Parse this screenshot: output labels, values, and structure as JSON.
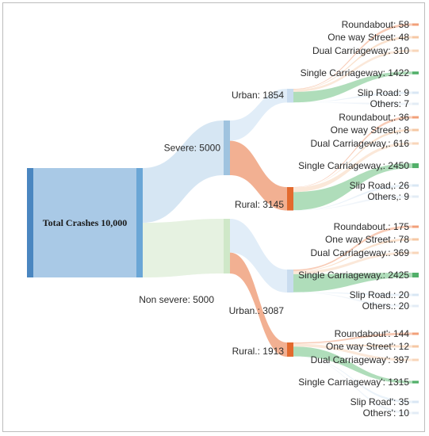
{
  "diagram": {
    "root": {
      "label": "Total Crashes 10,000",
      "value": 10000
    },
    "severity": [
      {
        "key": "severe",
        "label": "Severe: 5000",
        "value": 5000
      },
      {
        "key": "nonsevere",
        "label": "Non severe: 5000",
        "value": 5000
      }
    ],
    "area": [
      {
        "key": "sev_urban",
        "parent": "severe",
        "label": "Urban: 1854",
        "value": 1854
      },
      {
        "key": "sev_rural",
        "parent": "severe",
        "label": "Rural: 3145",
        "value": 3145
      },
      {
        "key": "non_urban",
        "parent": "nonsevere",
        "label": "Urban.: 3087",
        "value": 3087
      },
      {
        "key": "non_rural",
        "parent": "nonsevere",
        "label": "Rural.: 1913",
        "value": 1913
      }
    ],
    "roads": [
      {
        "parent": "sev_urban",
        "label": "Roundabout: 58",
        "value": 58
      },
      {
        "parent": "sev_urban",
        "label": "One way Street: 48",
        "value": 48
      },
      {
        "parent": "sev_urban",
        "label": "Dual Carriageway: 310",
        "value": 310
      },
      {
        "parent": "sev_urban",
        "label": "Single Carriageway: 1422",
        "value": 1422
      },
      {
        "parent": "sev_urban",
        "label": "Slip Road: 9",
        "value": 9
      },
      {
        "parent": "sev_urban",
        "label": "Others: 7",
        "value": 7
      },
      {
        "parent": "sev_rural",
        "label": "Roundabout,: 36",
        "value": 36
      },
      {
        "parent": "sev_rural",
        "label": "One way Street,: 8",
        "value": 8
      },
      {
        "parent": "sev_rural",
        "label": "Dual Carriageway,: 616",
        "value": 616
      },
      {
        "parent": "sev_rural",
        "label": "Single Carriageway,: 2450",
        "value": 2450
      },
      {
        "parent": "sev_rural",
        "label": "Slip Road,: 26",
        "value": 26
      },
      {
        "parent": "sev_rural",
        "label": "Others,: 9",
        "value": 9
      },
      {
        "parent": "non_urban",
        "label": "Roundabout.: 175",
        "value": 175
      },
      {
        "parent": "non_urban",
        "label": "One way Street.: 78",
        "value": 78
      },
      {
        "parent": "non_urban",
        "label": "Dual Carriageway.: 369",
        "value": 369
      },
      {
        "parent": "non_urban",
        "label": "Single Carriageway.: 2425",
        "value": 2425
      },
      {
        "parent": "non_urban",
        "label": "Slip Road.: 20",
        "value": 20
      },
      {
        "parent": "non_urban",
        "label": "Others.: 20",
        "value": 20
      },
      {
        "parent": "non_rural",
        "label": "Roundabout': 144",
        "value": 144
      },
      {
        "parent": "non_rural",
        "label": "One way Street': 12",
        "value": 12
      },
      {
        "parent": "non_rural",
        "label": "Dual Carriageway': 397",
        "value": 397
      },
      {
        "parent": "non_rural",
        "label": "Single Carriageway': 1315",
        "value": 1315
      },
      {
        "parent": "non_rural",
        "label": "Slip Road': 35",
        "value": 35
      },
      {
        "parent": "non_rural",
        "label": "Others': 10",
        "value": 10
      }
    ],
    "colors": {
      "root": "#a9c9e6",
      "root_edge": "#4a86c0",
      "root_bar": "#6aa6d6",
      "severe_node": "#9fc3df",
      "severe_link": "#d2e3f2",
      "nonsevere_node": "#cfe8c8",
      "nonsevere_link": "#e3f1de",
      "urban_node": "#c9dcef",
      "urban_link": "#dceaf7",
      "rural_node": "#e36a2e",
      "rural_link": "#f0a27f",
      "roundabout": "#f2a07a",
      "oneway": "#f6c8a4",
      "dual": "#f8d6ba",
      "single": "#52b06a",
      "single_link": "#9bd4a9",
      "slip": "#d9e7f4",
      "others": "#e3ecf5"
    }
  }
}
